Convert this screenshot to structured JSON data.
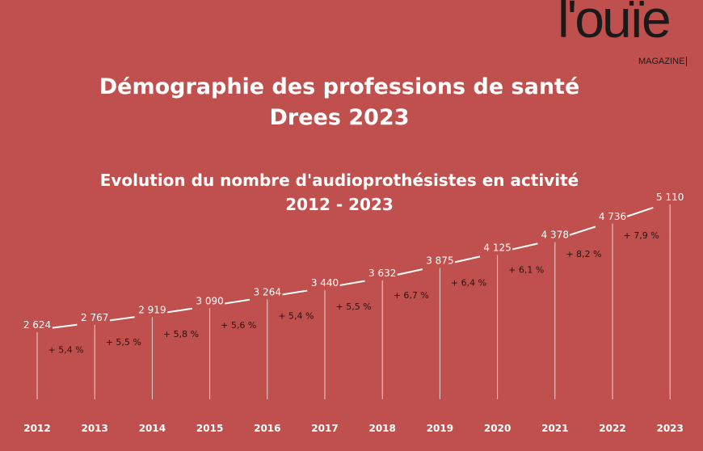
{
  "logo": {
    "word": "l'ouïe",
    "sub": "MAGAZINE"
  },
  "header": {
    "title_line1": "Démographie des professions de santé",
    "title_line2": "Drees 2023",
    "subtitle_line1": "Evolution du nombre d'audioprothésistes en activité",
    "subtitle_line2": "2012 - 2023"
  },
  "colors": {
    "background": "#c0504e",
    "line": "#ffffff",
    "growth_text": "#2a1010"
  },
  "chart_data": {
    "type": "line",
    "title": "Evolution du nombre d'audioprothésistes en activité",
    "categories": [
      "2012",
      "2013",
      "2014",
      "2015",
      "2016",
      "2017",
      "2018",
      "2019",
      "2020",
      "2021",
      "2022",
      "2023"
    ],
    "values": [
      2624,
      2767,
      2919,
      3090,
      3264,
      3440,
      3632,
      3875,
      4125,
      4378,
      4736,
      5110
    ],
    "value_labels": [
      "2 624",
      "2 767",
      "2 919",
      "3 090",
      "3 264",
      "3 440",
      "3 632",
      "3 875",
      "4 125",
      "4 378",
      "4 736",
      "5 110"
    ],
    "growth_labels": [
      "+ 5,4 %",
      "+ 5,5 %",
      "+ 5,8 %",
      "+ 5,6 %",
      "+ 5,4 %",
      "+ 5,5 %",
      "+ 6,7 %",
      "+ 6,4 %",
      "+ 6,1 %",
      "+ 8,2 %",
      "+ 7,9 %"
    ],
    "grid": false,
    "legend": "none"
  }
}
